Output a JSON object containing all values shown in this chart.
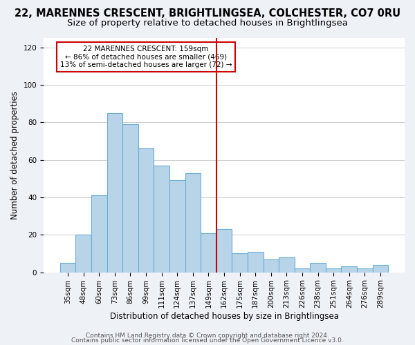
{
  "title_line1": "22, MARENNES CRESCENT, BRIGHTLINGSEA, COLCHESTER, CO7 0RU",
  "title_line2": "Size of property relative to detached houses in Brightlingsea",
  "xlabel": "Distribution of detached houses by size in Brightlingsea",
  "ylabel": "Number of detached properties",
  "footer_line1": "Contains HM Land Registry data © Crown copyright and database right 2024.",
  "footer_line2": "Contains public sector information licensed under the Open Government Licence v3.0.",
  "bar_labels": [
    "35sqm",
    "48sqm",
    "60sqm",
    "73sqm",
    "86sqm",
    "99sqm",
    "111sqm",
    "124sqm",
    "137sqm",
    "149sqm",
    "162sqm",
    "175sqm",
    "187sqm",
    "200sqm",
    "213sqm",
    "226sqm",
    "238sqm",
    "251sqm",
    "264sqm",
    "276sqm",
    "289sqm"
  ],
  "bar_values": [
    5,
    20,
    41,
    85,
    79,
    66,
    57,
    49,
    53,
    21,
    23,
    10,
    11,
    7,
    8,
    2,
    5,
    2,
    3,
    2,
    4
  ],
  "bar_color": "#b8d4e8",
  "bar_edge_color": "#6aaed6",
  "marker_index": 10,
  "marker_color": "#cc0000",
  "annotation_title": "22 MARENNES CRESCENT: 159sqm",
  "annotation_line2": "← 86% of detached houses are smaller (469)",
  "annotation_line3": "13% of semi-detached houses are larger (72) →",
  "annotation_box_edge": "#cc0000",
  "ylim": [
    0,
    125
  ],
  "yticks": [
    0,
    20,
    40,
    60,
    80,
    100,
    120
  ],
  "background_color": "#eef2f7",
  "plot_bg_color": "#ffffff",
  "grid_color": "#cccccc",
  "title_fontsize": 10.5,
  "subtitle_fontsize": 9.5,
  "axis_label_fontsize": 8.5,
  "tick_fontsize": 7.5,
  "footer_fontsize": 6.5
}
